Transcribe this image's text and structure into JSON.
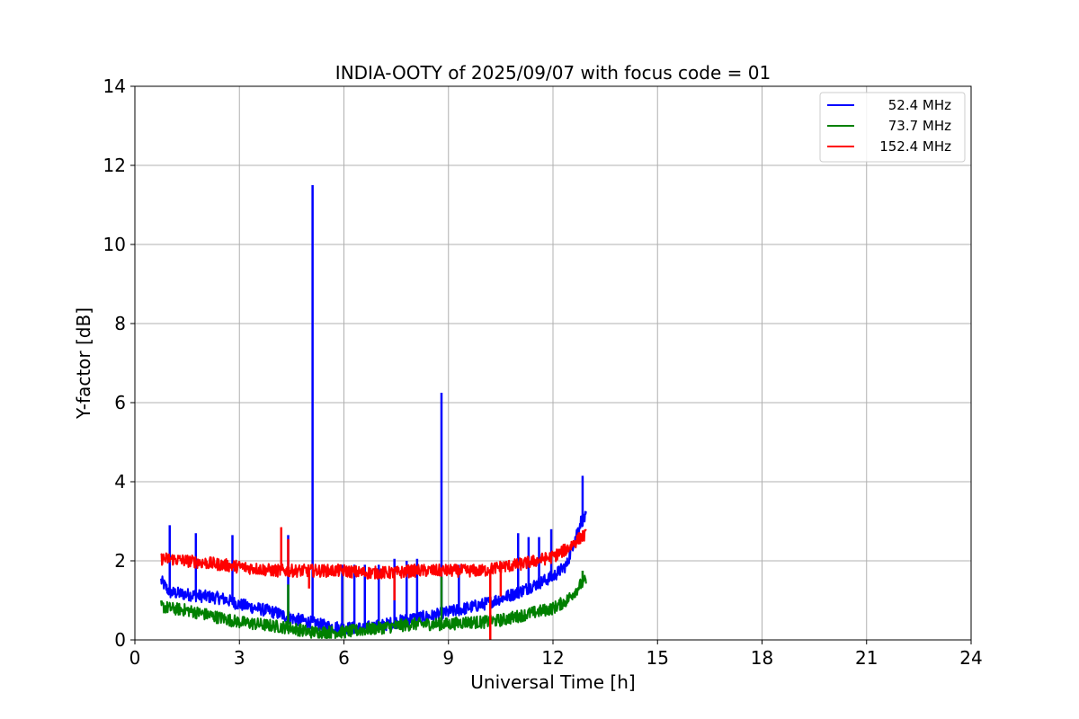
{
  "chart_data": {
    "type": "line",
    "title": "INDIA-OOTY of 2025/09/07 with focus code = 01",
    "xlabel": "Universal Time [h]",
    "ylabel": "Y-factor [dB]",
    "xlim": [
      0,
      24
    ],
    "ylim": [
      0,
      14
    ],
    "xticks": [
      0,
      3,
      6,
      9,
      12,
      15,
      18,
      21,
      24
    ],
    "yticks": [
      0,
      2,
      4,
      6,
      8,
      10,
      12,
      14
    ],
    "grid": true,
    "legend_position": "top-right",
    "series": [
      {
        "name": "52.4 MHz",
        "color": "#0000ff",
        "x": [
          0.75,
          1.0,
          1.5,
          2.0,
          2.5,
          3.0,
          3.5,
          4.0,
          4.5,
          5.0,
          5.5,
          6.0,
          6.5,
          7.0,
          7.5,
          8.0,
          8.5,
          9.0,
          9.5,
          10.0,
          10.5,
          11.0,
          11.5,
          12.0,
          12.4,
          12.6,
          12.8,
          12.95
        ],
        "y": [
          1.5,
          1.2,
          1.15,
          1.1,
          1.05,
          0.9,
          0.8,
          0.7,
          0.55,
          0.45,
          0.35,
          0.3,
          0.3,
          0.35,
          0.45,
          0.55,
          0.6,
          0.7,
          0.8,
          0.9,
          1.05,
          1.2,
          1.4,
          1.6,
          1.9,
          2.5,
          3.0,
          3.1
        ],
        "spikes": [
          {
            "x": 1.0,
            "y": 2.9
          },
          {
            "x": 1.75,
            "y": 2.7
          },
          {
            "x": 2.8,
            "y": 2.65
          },
          {
            "x": 4.4,
            "y": 2.65
          },
          {
            "x": 5.1,
            "y": 11.5
          },
          {
            "x": 5.95,
            "y": 1.9
          },
          {
            "x": 6.3,
            "y": 1.9
          },
          {
            "x": 6.6,
            "y": 1.9
          },
          {
            "x": 7.0,
            "y": 1.9
          },
          {
            "x": 7.45,
            "y": 2.05
          },
          {
            "x": 7.8,
            "y": 2.0
          },
          {
            "x": 8.1,
            "y": 2.05
          },
          {
            "x": 8.8,
            "y": 6.25
          },
          {
            "x": 9.3,
            "y": 1.9
          },
          {
            "x": 11.0,
            "y": 2.7
          },
          {
            "x": 11.3,
            "y": 2.6
          },
          {
            "x": 11.6,
            "y": 2.6
          },
          {
            "x": 11.95,
            "y": 2.8
          },
          {
            "x": 12.85,
            "y": 4.15
          }
        ]
      },
      {
        "name": "73.7 MHz",
        "color": "#008000",
        "x": [
          0.75,
          1.0,
          1.5,
          2.0,
          2.5,
          3.0,
          3.5,
          4.0,
          4.5,
          5.0,
          5.5,
          6.0,
          6.5,
          7.0,
          7.5,
          8.0,
          8.5,
          9.0,
          9.5,
          10.0,
          10.5,
          11.0,
          11.5,
          12.0,
          12.4,
          12.6,
          12.8,
          12.95
        ],
        "y": [
          0.85,
          0.8,
          0.75,
          0.65,
          0.55,
          0.45,
          0.4,
          0.35,
          0.3,
          0.2,
          0.2,
          0.2,
          0.25,
          0.3,
          0.35,
          0.4,
          0.4,
          0.4,
          0.45,
          0.45,
          0.5,
          0.6,
          0.7,
          0.8,
          1.0,
          1.2,
          1.4,
          1.5
        ],
        "spikes": [
          {
            "x": 4.4,
            "y": 1.4
          },
          {
            "x": 8.8,
            "y": 1.6
          },
          {
            "x": 12.85,
            "y": 1.75
          }
        ]
      },
      {
        "name": "152.4 MHz",
        "color": "#ff0000",
        "x": [
          0.75,
          1.0,
          1.5,
          2.0,
          2.5,
          3.0,
          3.5,
          4.0,
          4.5,
          5.0,
          5.5,
          6.0,
          6.5,
          7.0,
          7.5,
          8.0,
          8.5,
          9.0,
          9.5,
          10.0,
          10.5,
          11.0,
          11.5,
          12.0,
          12.4,
          12.6,
          12.8,
          12.95
        ],
        "y": [
          2.05,
          2.05,
          2.0,
          1.95,
          1.9,
          1.85,
          1.8,
          1.75,
          1.75,
          1.75,
          1.75,
          1.75,
          1.7,
          1.7,
          1.7,
          1.75,
          1.75,
          1.75,
          1.75,
          1.75,
          1.85,
          1.9,
          2.0,
          2.1,
          2.3,
          2.45,
          2.6,
          2.65
        ],
        "spikes": [
          {
            "x": 4.2,
            "y": 2.85
          },
          {
            "x": 4.4,
            "y": 2.55
          },
          {
            "x": 10.2,
            "y": 0.0
          },
          {
            "x": 10.5,
            "y": 1.1
          },
          {
            "x": 7.45,
            "y": 1.0
          },
          {
            "x": 5.0,
            "y": 1.3
          }
        ]
      }
    ]
  }
}
